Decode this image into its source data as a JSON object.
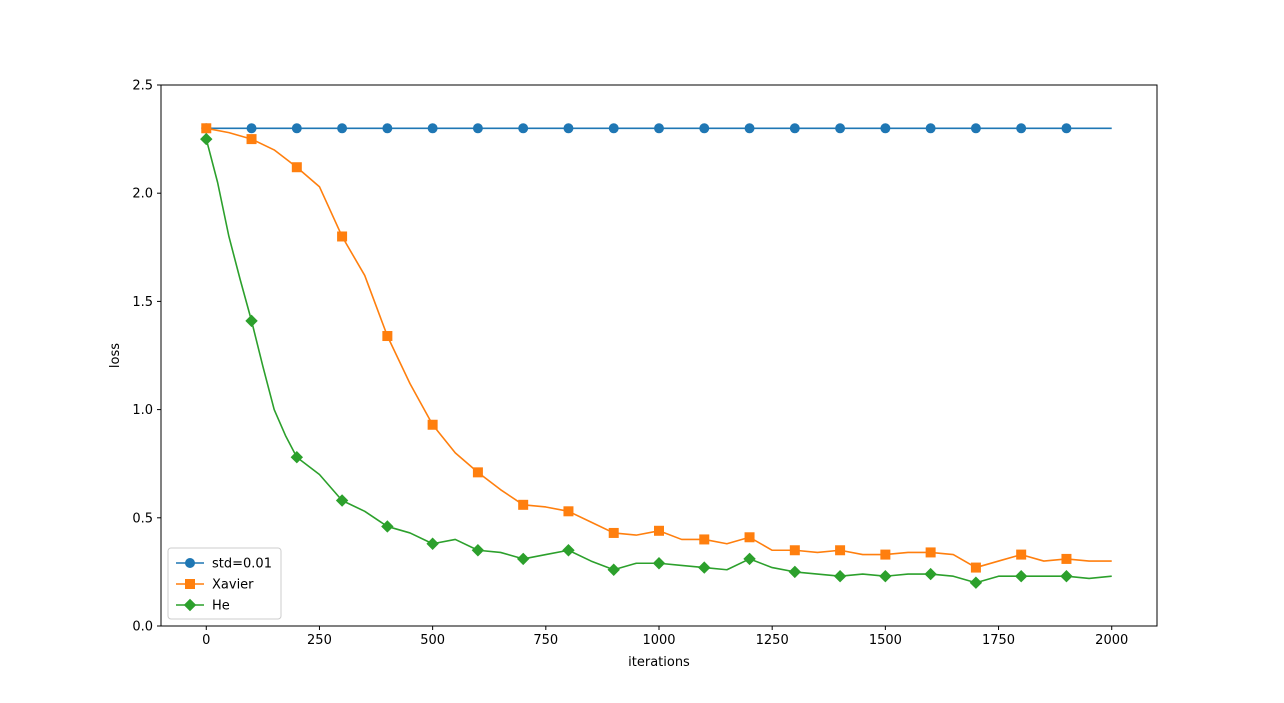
{
  "chart_data": {
    "type": "line",
    "xlabel": "iterations",
    "ylabel": "loss",
    "xlim": [
      -100,
      2100
    ],
    "ylim": [
      0.0,
      2.5
    ],
    "xticks": [
      0,
      250,
      500,
      750,
      1000,
      1250,
      1500,
      1750,
      2000
    ],
    "xtick_labels": [
      "0",
      "250",
      "500",
      "750",
      "1000",
      "1250",
      "1500",
      "1750",
      "2000"
    ],
    "yticks": [
      0.0,
      0.5,
      1.0,
      1.5,
      2.0,
      2.5
    ],
    "ytick_labels": [
      "0.0",
      "0.5",
      "1.0",
      "1.5",
      "2.0",
      "2.5"
    ],
    "grid": false,
    "legend_position": "lower-left",
    "series": [
      {
        "name": "std=0.01",
        "color": "#1f77b4",
        "marker": "circle",
        "x": [
          0,
          100,
          200,
          300,
          400,
          500,
          600,
          700,
          800,
          900,
          1000,
          1100,
          1200,
          1300,
          1400,
          1500,
          1600,
          1700,
          1800,
          1900,
          2000
        ],
        "values": [
          2.3,
          2.3,
          2.3,
          2.3,
          2.3,
          2.3,
          2.3,
          2.3,
          2.3,
          2.3,
          2.3,
          2.3,
          2.3,
          2.3,
          2.3,
          2.3,
          2.3,
          2.3,
          2.3,
          2.3,
          2.3
        ],
        "marker_every": 100
      },
      {
        "name": "Xavier",
        "color": "#ff7f0e",
        "marker": "square",
        "x": [
          0,
          50,
          100,
          150,
          200,
          250,
          300,
          350,
          400,
          450,
          500,
          550,
          600,
          650,
          700,
          750,
          800,
          850,
          900,
          950,
          1000,
          1050,
          1100,
          1150,
          1200,
          1250,
          1300,
          1350,
          1400,
          1450,
          1500,
          1550,
          1600,
          1650,
          1700,
          1750,
          1800,
          1850,
          1900,
          1950,
          2000
        ],
        "values": [
          2.3,
          2.28,
          2.25,
          2.2,
          2.12,
          2.03,
          1.8,
          1.62,
          1.34,
          1.12,
          0.93,
          0.8,
          0.71,
          0.63,
          0.56,
          0.55,
          0.53,
          0.48,
          0.43,
          0.42,
          0.44,
          0.4,
          0.4,
          0.38,
          0.41,
          0.35,
          0.35,
          0.34,
          0.35,
          0.33,
          0.33,
          0.34,
          0.34,
          0.33,
          0.27,
          0.3,
          0.33,
          0.3,
          0.31,
          0.3,
          0.3
        ],
        "marker_every": 100
      },
      {
        "name": "He",
        "color": "#2ca02c",
        "marker": "diamond",
        "x": [
          0,
          25,
          50,
          75,
          100,
          125,
          150,
          175,
          200,
          250,
          300,
          350,
          400,
          450,
          500,
          550,
          600,
          650,
          700,
          750,
          800,
          850,
          900,
          950,
          1000,
          1050,
          1100,
          1150,
          1200,
          1250,
          1300,
          1350,
          1400,
          1450,
          1500,
          1550,
          1600,
          1650,
          1700,
          1750,
          1800,
          1850,
          1900,
          1950,
          2000
        ],
        "values": [
          2.25,
          2.05,
          1.8,
          1.6,
          1.41,
          1.2,
          1.0,
          0.88,
          0.78,
          0.7,
          0.58,
          0.53,
          0.46,
          0.43,
          0.38,
          0.4,
          0.35,
          0.34,
          0.31,
          0.33,
          0.35,
          0.3,
          0.26,
          0.29,
          0.29,
          0.28,
          0.27,
          0.26,
          0.31,
          0.27,
          0.25,
          0.24,
          0.23,
          0.24,
          0.23,
          0.24,
          0.24,
          0.23,
          0.2,
          0.23,
          0.23,
          0.23,
          0.23,
          0.22,
          0.23
        ],
        "marker_every": 100
      }
    ]
  }
}
